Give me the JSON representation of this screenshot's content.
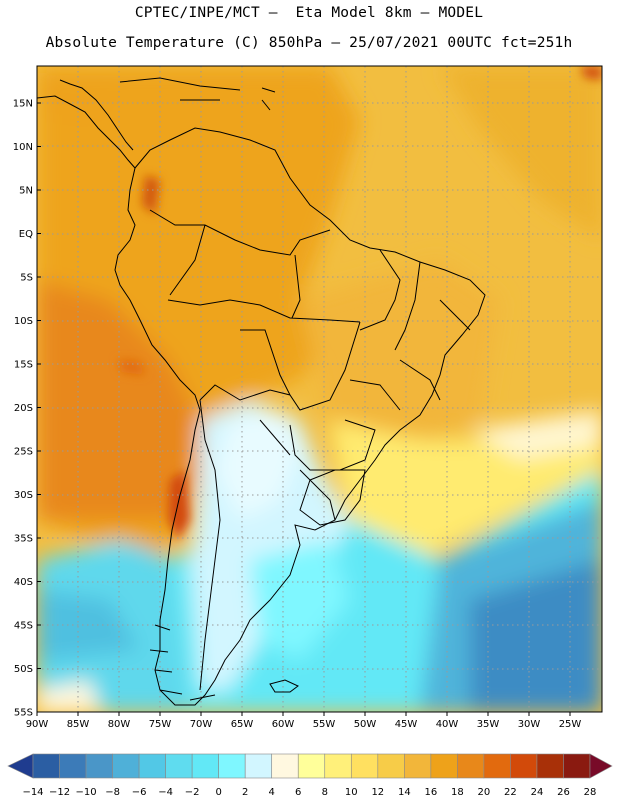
{
  "title_line1": "CPTEC/INPE/MCT –  Eta Model 8km – MODEL",
  "title_line2": "Absolute Temperature (C) 850hPa – 25/07/2021 00UTC fct=251h",
  "lat_labels": [
    "15N",
    "10N",
    "5N",
    "EQ",
    "5S",
    "10S",
    "15S",
    "20S",
    "25S",
    "30S",
    "35S",
    "40S",
    "45S",
    "50S",
    "55S"
  ],
  "lon_labels": [
    "90W",
    "85W",
    "80W",
    "75W",
    "70W",
    "65W",
    "60W",
    "55W",
    "50W",
    "45W",
    "40W",
    "35W",
    "30W",
    "25W"
  ],
  "colorbar": {
    "labels": [
      "-14",
      "-12",
      "-10",
      "-8",
      "-6",
      "-4",
      "-2",
      "0",
      "2",
      "4",
      "6",
      "8",
      "10",
      "12",
      "14",
      "16",
      "18",
      "20",
      "22",
      "24",
      "26",
      "28"
    ],
    "colors": [
      "#1f3c8f",
      "#2b5ea3",
      "#3c7bb8",
      "#4a96c8",
      "#4fb0d8",
      "#52c8e6",
      "#5fdcef",
      "#62e8f6",
      "#7ff7ff",
      "#d2f6ff",
      "#fff8e0",
      "#ffff9a",
      "#fff07a",
      "#ffe060",
      "#f7cc48",
      "#f2b63a",
      "#eea21a",
      "#e8881a",
      "#e26a0e",
      "#d24a0a",
      "#a83008",
      "#8a1a10",
      "#780a28"
    ]
  }
}
